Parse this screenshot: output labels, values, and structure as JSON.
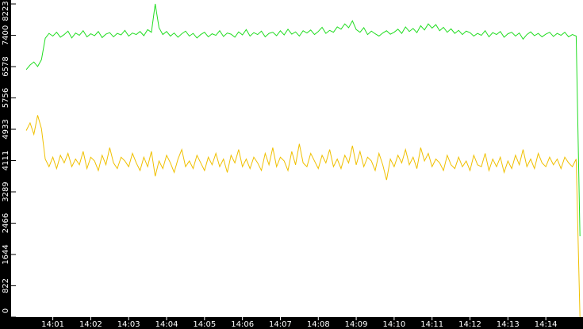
{
  "chart_data": {
    "type": "line",
    "x": [
      0.3,
      0.4,
      0.5,
      0.6,
      0.7,
      0.8,
      0.9,
      1.0,
      1.1,
      1.2,
      1.3,
      1.4,
      1.5,
      1.6,
      1.7,
      1.8,
      1.9,
      2.0,
      2.1,
      2.2,
      2.3,
      2.4,
      2.5,
      2.6,
      2.7,
      2.8,
      2.9,
      3.0,
      3.1,
      3.2,
      3.3,
      3.4,
      3.5,
      3.6,
      3.7,
      3.8,
      3.9,
      4.0,
      4.1,
      4.2,
      4.3,
      4.4,
      4.5,
      4.6,
      4.7,
      4.8,
      4.9,
      5.0,
      5.1,
      5.2,
      5.3,
      5.4,
      5.5,
      5.6,
      5.7,
      5.8,
      5.9,
      6.0,
      6.1,
      6.2,
      6.3,
      6.4,
      6.5,
      6.6,
      6.7,
      6.8,
      6.9,
      7.0,
      7.1,
      7.2,
      7.3,
      7.4,
      7.5,
      7.6,
      7.7,
      7.8,
      7.9,
      8.0,
      8.1,
      8.2,
      8.3,
      8.4,
      8.5,
      8.6,
      8.7,
      8.8,
      8.9,
      9.0,
      9.1,
      9.2,
      9.3,
      9.4,
      9.5,
      9.6,
      9.7,
      9.8,
      9.9,
      10.0,
      10.1,
      10.2,
      10.3,
      10.4,
      10.5,
      10.6,
      10.7,
      10.8,
      10.9,
      11.0,
      11.1,
      11.2,
      11.3,
      11.4,
      11.5,
      11.6,
      11.7,
      11.8,
      11.9,
      12.0,
      12.1,
      12.2,
      12.3,
      12.4,
      12.5,
      12.6,
      12.7,
      12.8,
      12.9,
      13.0,
      13.1,
      13.2,
      13.3,
      13.4,
      13.5,
      13.6,
      13.7,
      13.8,
      13.9,
      14.0,
      14.1,
      14.2,
      14.3,
      14.4,
      14.5,
      14.6,
      14.7,
      14.8,
      14.9
    ],
    "series": [
      {
        "color": "#22dd22",
        "values": [
          6500,
          6620,
          6700,
          6580,
          6760,
          7320,
          7450,
          7380,
          7480,
          7350,
          7420,
          7510,
          7330,
          7460,
          7400,
          7520,
          7360,
          7440,
          7390,
          7500,
          7340,
          7430,
          7470,
          7360,
          7450,
          7410,
          7530,
          7380,
          7460,
          7420,
          7500,
          7390,
          7550,
          7480,
          8223,
          7600,
          7420,
          7500,
          7380,
          7460,
          7350,
          7440,
          7510,
          7380,
          7450,
          7330,
          7420,
          7480,
          7360,
          7440,
          7400,
          7520,
          7370,
          7460,
          7430,
          7350,
          7490,
          7410,
          7550,
          7380,
          7470,
          7420,
          7510,
          7360,
          7450,
          7480,
          7390,
          7520,
          7410,
          7560,
          7430,
          7490,
          7380,
          7520,
          7460,
          7540,
          7420,
          7500,
          7610,
          7450,
          7530,
          7480,
          7620,
          7560,
          7700,
          7600,
          7780,
          7550,
          7480,
          7600,
          7420,
          7510,
          7440,
          7380,
          7460,
          7520,
          7430,
          7480,
          7560,
          7450,
          7620,
          7500,
          7580,
          7470,
          7650,
          7540,
          7700,
          7590,
          7680,
          7520,
          7610,
          7480,
          7570,
          7450,
          7530,
          7420,
          7510,
          7470,
          7380,
          7450,
          7400,
          7520,
          7360,
          7470,
          7420,
          7500,
          7350,
          7440,
          7480,
          7380,
          7460,
          7300,
          7420,
          7490,
          7390,
          7450,
          7360,
          7430,
          7480,
          7370,
          7450,
          7400,
          7480,
          7360,
          7420,
          7380,
          2123
        ]
      },
      {
        "color": "#f0c000",
        "values": [
          4900,
          5100,
          4800,
          5300,
          4950,
          4150,
          3950,
          4200,
          3900,
          4250,
          4050,
          4300,
          3950,
          4150,
          4000,
          4350,
          3900,
          4200,
          4100,
          3850,
          4250,
          4000,
          4450,
          4050,
          3900,
          4200,
          4100,
          3950,
          4300,
          4050,
          3850,
          4200,
          3950,
          4350,
          3700,
          4100,
          3900,
          4250,
          4050,
          3800,
          4150,
          4400,
          3950,
          4100,
          3900,
          4250,
          4050,
          3850,
          4200,
          4000,
          4300,
          3950,
          4150,
          3800,
          4250,
          4050,
          4400,
          3950,
          4150,
          3900,
          4200,
          4050,
          3850,
          4300,
          4000,
          4450,
          3950,
          4200,
          4100,
          3850,
          4350,
          4000,
          4550,
          4050,
          3950,
          4300,
          4100,
          3900,
          4250,
          4050,
          4400,
          3950,
          4150,
          3900,
          4250,
          4050,
          4500,
          4000,
          4350,
          3950,
          4200,
          4100,
          3850,
          4300,
          4000,
          3600,
          4150,
          3950,
          4250,
          4050,
          4400,
          4000,
          4200,
          3900,
          4450,
          4100,
          4300,
          3950,
          4150,
          4050,
          3850,
          4250,
          4000,
          3900,
          4200,
          3950,
          4100,
          3850,
          4250,
          4000,
          3950,
          4300,
          3850,
          4150,
          3950,
          4200,
          3800,
          4100,
          3900,
          4250,
          4000,
          4400,
          3950,
          4150,
          3900,
          4300,
          4050,
          3950,
          4200,
          4000,
          4150,
          3900,
          4200,
          4050,
          3950,
          4150,
          0
        ]
      }
    ],
    "xlim": [
      -0.1,
      14.98
    ],
    "xticks": [
      {
        "value": 1,
        "label": "14:01"
      },
      {
        "value": 2,
        "label": "14:02"
      },
      {
        "value": 3,
        "label": "14:03"
      },
      {
        "value": 4,
        "label": "14:04"
      },
      {
        "value": 5,
        "label": "14:05"
      },
      {
        "value": 6,
        "label": "14:06"
      },
      {
        "value": 7,
        "label": "14:07"
      },
      {
        "value": 8,
        "label": "14:08"
      },
      {
        "value": 9,
        "label": "14:09"
      },
      {
        "value": 10,
        "label": "14:10"
      },
      {
        "value": 11,
        "label": "14:11"
      },
      {
        "value": 12,
        "label": "14:12"
      },
      {
        "value": 13,
        "label": "14:13"
      },
      {
        "value": 14,
        "label": "14:14"
      }
    ],
    "ylim": [
      0,
      8223
    ],
    "yticks": [
      0,
      822,
      1644,
      2466,
      3289,
      4111,
      4933,
      5756,
      6578,
      7400,
      8223
    ]
  }
}
